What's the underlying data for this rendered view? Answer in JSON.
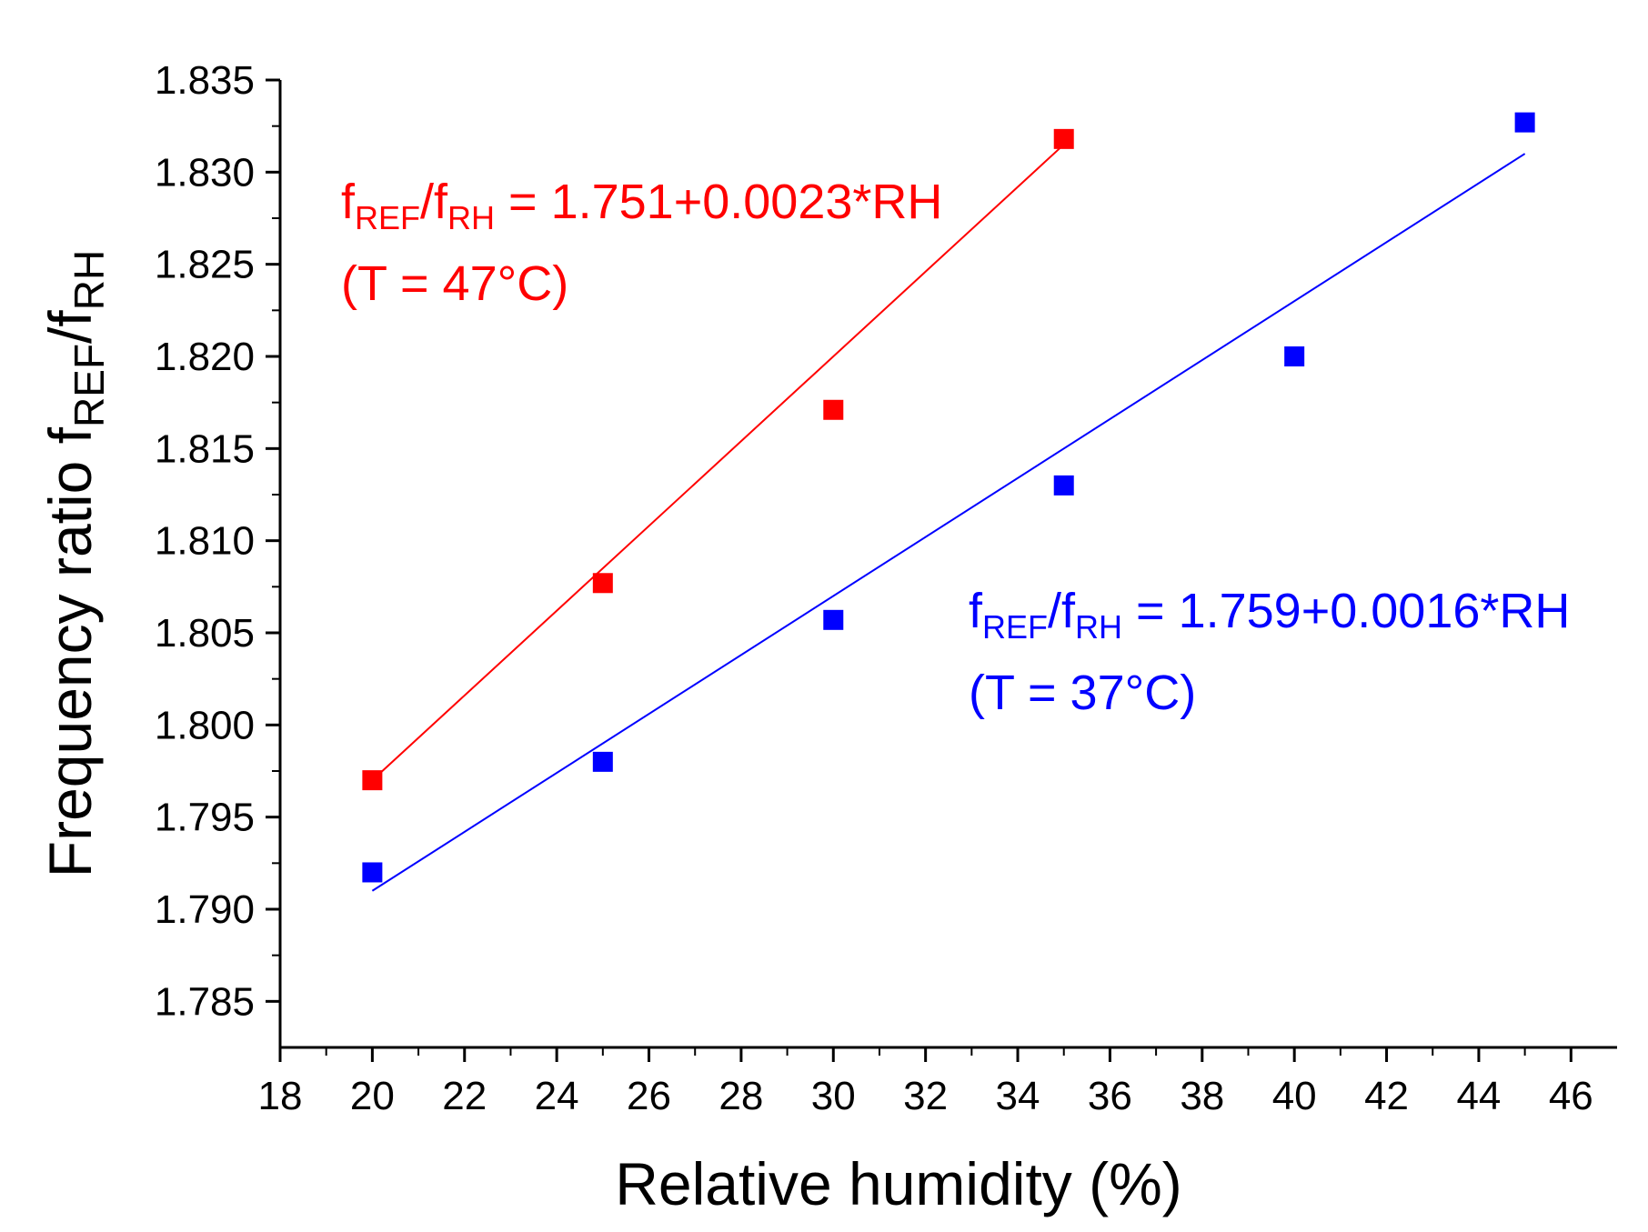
{
  "chart_data": {
    "type": "scatter",
    "title": "",
    "xlabel": "Relative humidity (%)",
    "ylabel": {
      "prefix": "Frequency ratio f",
      "sub1": "REF",
      "mid": "/f",
      "sub2": "RH"
    },
    "xlim": [
      18,
      47
    ],
    "ylim": [
      1.7825,
      1.835
    ],
    "x_ticks": [
      18,
      20,
      22,
      24,
      26,
      28,
      30,
      32,
      34,
      36,
      38,
      40,
      42,
      44,
      46
    ],
    "y_ticks": [
      1.785,
      1.79,
      1.795,
      1.8,
      1.805,
      1.81,
      1.815,
      1.82,
      1.825,
      1.83,
      1.835
    ],
    "x_tick_labels": [
      "18",
      "20",
      "22",
      "24",
      "26",
      "28",
      "30",
      "32",
      "34",
      "36",
      "38",
      "40",
      "42",
      "44",
      "46"
    ],
    "y_tick_labels": [
      "1.785",
      "1.790",
      "1.795",
      "1.800",
      "1.805",
      "1.810",
      "1.815",
      "1.820",
      "1.825",
      "1.830",
      "1.835"
    ],
    "grid": false,
    "series": [
      {
        "name": "T = 47°C",
        "color": "#ff0000",
        "x": [
          20,
          25,
          30,
          35
        ],
        "values": [
          1.797,
          1.8077,
          1.8171,
          1.8318
        ],
        "fit": {
          "intercept": 1.751,
          "slope": 0.0023,
          "x_range": [
            20,
            35
          ]
        },
        "annotation": {
          "f1": "f",
          "sub1": "REF",
          "mid": "/f",
          "sub2": "RH",
          "equation": " = 1.751+0.0023*RH",
          "condition": "(T = 47°C)"
        }
      },
      {
        "name": "T = 37°C",
        "color": "#0000ff",
        "x": [
          20,
          25,
          30,
          35,
          40,
          45
        ],
        "values": [
          1.792,
          1.798,
          1.8057,
          1.813,
          1.82,
          1.8327
        ],
        "fit": {
          "intercept": 1.759,
          "slope": 0.0016,
          "x_range": [
            20,
            45
          ]
        },
        "annotation": {
          "f1": "f",
          "sub1": "REF",
          "mid": "/f",
          "sub2": "RH",
          "equation": " = 1.759+0.0016*RH",
          "condition": "(T = 37°C)"
        }
      }
    ]
  }
}
